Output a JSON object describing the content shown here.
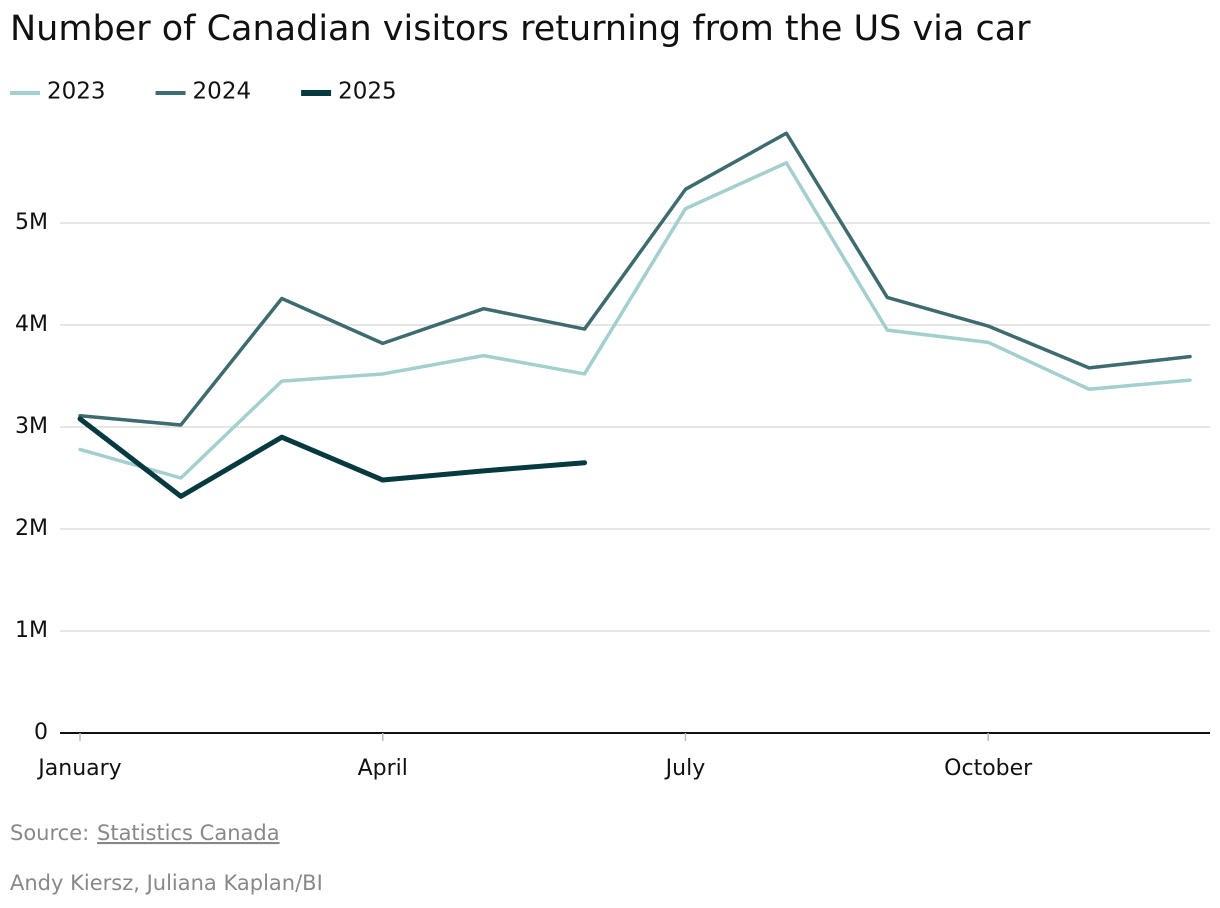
{
  "chart_data": {
    "type": "line",
    "title": "Number of Canadian visitors returning from the US via car",
    "categories": [
      "January",
      null,
      null,
      "April",
      null,
      null,
      "July",
      null,
      null,
      "October",
      null,
      null
    ],
    "series": [
      {
        "name": "2023",
        "color": "#a3cfcf",
        "values": [
          2780000,
          2500000,
          3450000,
          3520000,
          3700000,
          3520000,
          5140000,
          5590000,
          3950000,
          3830000,
          3370000,
          3460000
        ]
      },
      {
        "name": "2024",
        "color": "#3d6b70",
        "values": [
          3110000,
          3020000,
          4260000,
          3820000,
          4160000,
          3960000,
          5330000,
          5880000,
          4270000,
          3990000,
          3580000,
          3690000
        ]
      },
      {
        "name": "2025",
        "color": "#063a40",
        "values": [
          3080000,
          2320000,
          2900000,
          2480000,
          2570000,
          2650000,
          null,
          null,
          null,
          null,
          null,
          null
        ]
      }
    ],
    "ylim": [
      0,
      6000000
    ],
    "yticks": [
      0,
      {
        "value": 1000000,
        "label": "1M"
      },
      {
        "value": 2000000,
        "label": "2M"
      },
      {
        "value": 3000000,
        "label": "3M"
      },
      {
        "value": 4000000,
        "label": "4M"
      },
      {
        "value": 5000000,
        "label": "5M"
      }
    ],
    "grid": true,
    "legend": "top-left",
    "source_label": "Source:",
    "source": "Statistics Canada",
    "credit": "Andy Kiersz, Juliana Kaplan/BI"
  }
}
